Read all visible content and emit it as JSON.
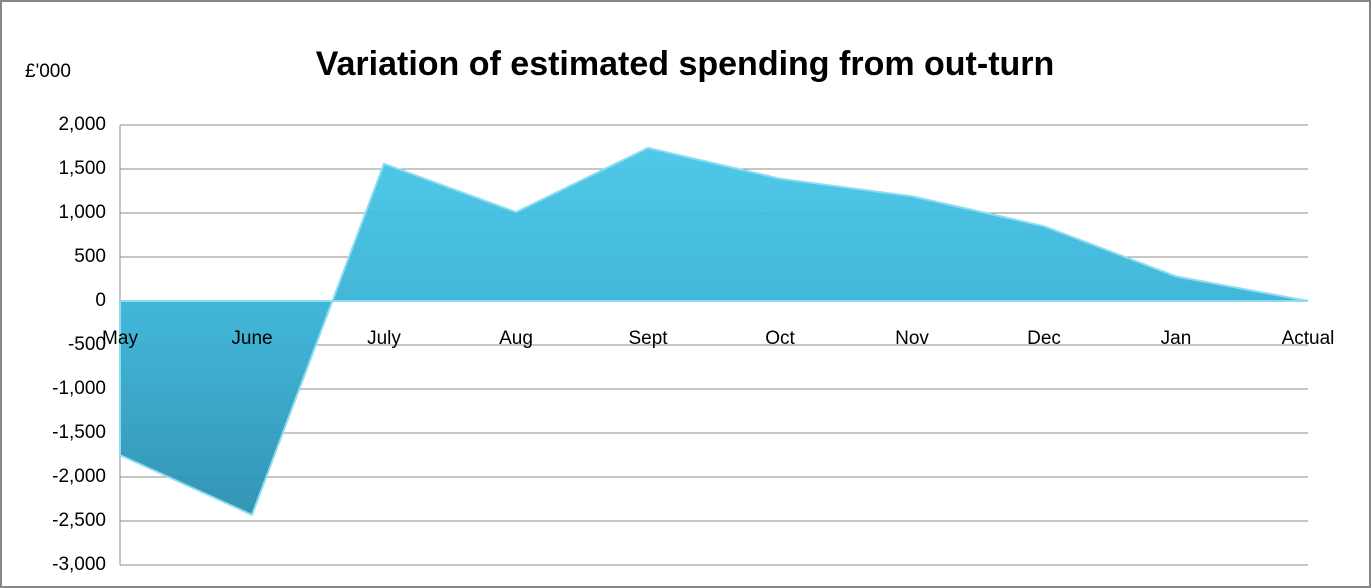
{
  "chart_data": {
    "type": "area",
    "title": "Variation of estimated spending from out-turn",
    "ylabel": "£'000",
    "categories": [
      "May",
      "June",
      "July",
      "Aug",
      "Sept",
      "Oct",
      "Nov",
      "Dec",
      "Jan",
      "Actual"
    ],
    "values": [
      -1750,
      -2430,
      1560,
      1010,
      1740,
      1390,
      1190,
      850,
      280,
      0
    ],
    "color": "#3ebfe2",
    "ylim": [
      -3000,
      2000
    ],
    "yticks": [
      {
        "value": 2000,
        "label": "2,000"
      },
      {
        "value": 1500,
        "label": "1,500"
      },
      {
        "value": 1000,
        "label": "1,000"
      },
      500,
      0,
      -500,
      {
        "value": -1000,
        "label": "-1,000"
      },
      {
        "value": -1500,
        "label": "-1,500"
      },
      {
        "value": -2000,
        "label": "-2,000"
      },
      {
        "value": -2500,
        "label": "-2,500"
      },
      {
        "value": -3000,
        "label": "-3,000"
      }
    ],
    "grid": true
  }
}
